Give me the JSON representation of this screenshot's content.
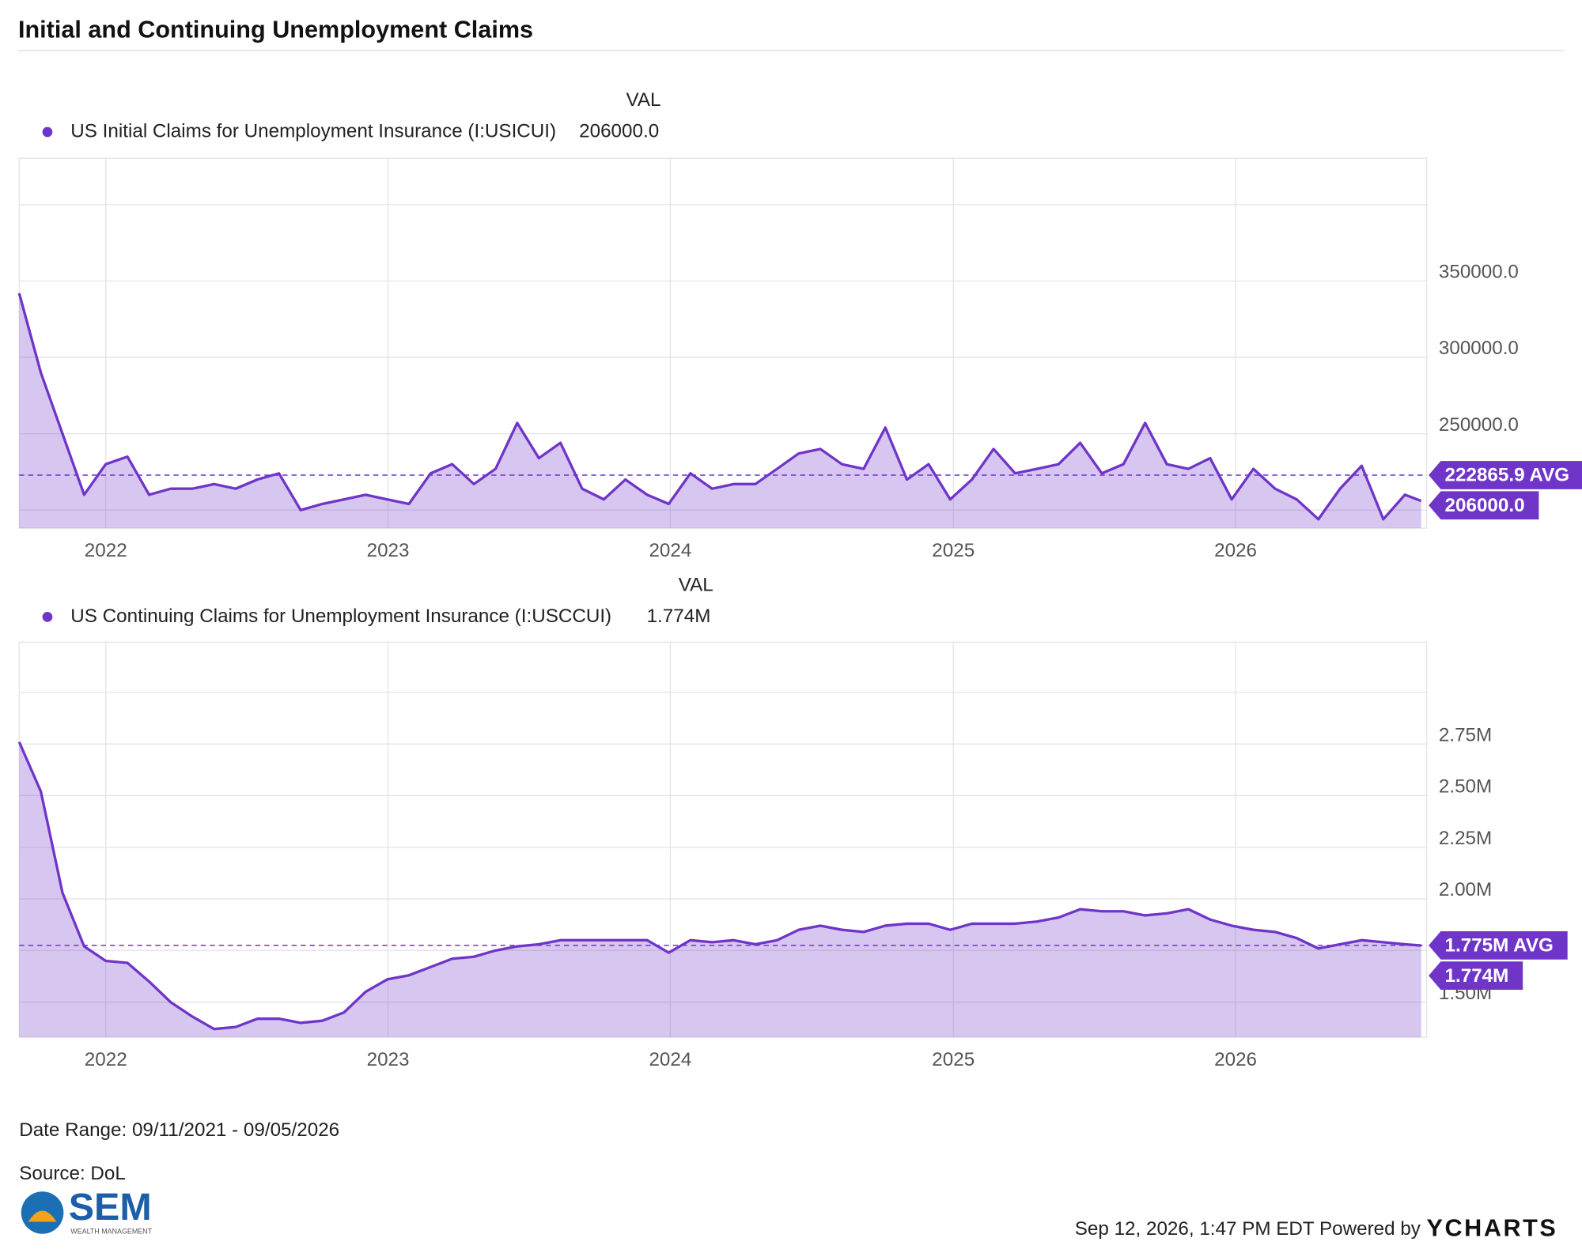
{
  "title": "Initial and Continuing Unemployment Claims",
  "chart_data": [
    {
      "type": "area",
      "legend_header": "VAL",
      "x": [
        "2021-09-11",
        "2021-10-09",
        "2021-11-06",
        "2021-12-04",
        "2022-01-01",
        "2022-01-29",
        "2022-02-26",
        "2022-03-26",
        "2022-04-23",
        "2022-05-21",
        "2022-06-18",
        "2022-07-16",
        "2022-08-13",
        "2022-09-10",
        "2022-10-08",
        "2022-11-05",
        "2022-12-03",
        "2022-12-31",
        "2023-01-28",
        "2023-02-25",
        "2023-03-25",
        "2023-04-22",
        "2023-05-20",
        "2023-06-17",
        "2023-07-15",
        "2023-08-12",
        "2023-09-09",
        "2023-10-07",
        "2023-11-04",
        "2023-12-02",
        "2023-12-30",
        "2024-01-27",
        "2024-02-24",
        "2024-03-23",
        "2024-04-20",
        "2024-05-18",
        "2024-06-15",
        "2024-07-13",
        "2024-08-10",
        "2024-09-07",
        "2024-10-05",
        "2024-11-02",
        "2024-11-30",
        "2024-12-28",
        "2025-01-25",
        "2025-02-22",
        "2025-03-22",
        "2025-04-19",
        "2025-05-17",
        "2025-06-14",
        "2025-07-12",
        "2025-08-09",
        "2025-09-06",
        "2025-10-04",
        "2025-11-01",
        "2025-11-29",
        "2025-12-27",
        "2026-01-24",
        "2026-02-21",
        "2026-03-21",
        "2026-04-18",
        "2026-05-16",
        "2026-06-13",
        "2026-07-11",
        "2026-08-08",
        "2026-08-29"
      ],
      "series": [
        {
          "name": "US Initial Claims for Unemployment Insurance (I:USICUI)",
          "color": "#6f35c9",
          "values": [
            342000,
            290000,
            250000,
            210000,
            230000,
            235000,
            210000,
            214000,
            214000,
            217000,
            214000,
            220000,
            224000,
            200000,
            204000,
            207000,
            210000,
            207000,
            204000,
            224000,
            230000,
            217000,
            227000,
            257000,
            234000,
            244000,
            214000,
            207000,
            220000,
            210000,
            204000,
            224000,
            214000,
            217000,
            217000,
            227000,
            237000,
            240000,
            230000,
            227000,
            254000,
            220000,
            230000,
            207000,
            220000,
            240000,
            224000,
            227000,
            230000,
            244000,
            224000,
            230000,
            257000,
            230000,
            227000,
            234000,
            207000,
            227000,
            214000,
            207000,
            194000,
            214000,
            229000,
            194000,
            210000,
            206000
          ]
        }
      ],
      "latest": {
        "value": 206000,
        "label": "206000.0"
      },
      "avg": {
        "value": 222865.9,
        "label": "222865.9 AVG"
      },
      "xlim": [
        "2021-09-11",
        "2026-09-05"
      ],
      "xticks": [
        {
          "value": "2022-01-01",
          "label": "2022"
        },
        {
          "value": "2023-01-01",
          "label": "2023"
        },
        {
          "value": "2024-01-01",
          "label": "2024"
        },
        {
          "value": "2025-01-01",
          "label": "2025"
        },
        {
          "value": "2026-01-01",
          "label": "2026"
        }
      ],
      "ylim": [
        188100,
        430400
      ],
      "yticks": [
        {
          "value": 250000,
          "label": "250000.0"
        },
        {
          "value": 300000,
          "label": "300000.0"
        },
        {
          "value": 350000,
          "label": "350000.0"
        }
      ],
      "grid_lines": [
        200000,
        250000,
        300000,
        350000,
        400000
      ]
    },
    {
      "type": "area",
      "legend_header": "VAL",
      "x": [
        "2021-09-11",
        "2021-10-09",
        "2021-11-06",
        "2021-12-04",
        "2022-01-01",
        "2022-01-29",
        "2022-02-26",
        "2022-03-26",
        "2022-04-23",
        "2022-05-21",
        "2022-06-18",
        "2022-07-16",
        "2022-08-13",
        "2022-09-10",
        "2022-10-08",
        "2022-11-05",
        "2022-12-03",
        "2022-12-31",
        "2023-01-28",
        "2023-02-25",
        "2023-03-25",
        "2023-04-22",
        "2023-05-20",
        "2023-06-17",
        "2023-07-15",
        "2023-08-12",
        "2023-09-09",
        "2023-10-07",
        "2023-11-04",
        "2023-12-02",
        "2023-12-30",
        "2024-01-27",
        "2024-02-24",
        "2024-03-23",
        "2024-04-20",
        "2024-05-18",
        "2024-06-15",
        "2024-07-13",
        "2024-08-10",
        "2024-09-07",
        "2024-10-05",
        "2024-11-02",
        "2024-11-30",
        "2024-12-28",
        "2025-01-25",
        "2025-02-22",
        "2025-03-22",
        "2025-04-19",
        "2025-05-17",
        "2025-06-14",
        "2025-07-12",
        "2025-08-09",
        "2025-09-06",
        "2025-10-04",
        "2025-11-01",
        "2025-11-29",
        "2025-12-27",
        "2026-01-24",
        "2026-02-21",
        "2026-03-21",
        "2026-04-18",
        "2026-05-16",
        "2026-06-13",
        "2026-07-11",
        "2026-08-08",
        "2026-08-29"
      ],
      "series": [
        {
          "name": "US Continuing Claims for Unemployment Insurance (I:USCCUI)",
          "color": "#6f35c9",
          "values": [
            2760000,
            2520000,
            2030000,
            1770000,
            1700000,
            1690000,
            1600000,
            1500000,
            1430000,
            1370000,
            1380000,
            1420000,
            1420000,
            1400000,
            1410000,
            1450000,
            1550000,
            1610000,
            1630000,
            1670000,
            1710000,
            1720000,
            1750000,
            1770000,
            1780000,
            1800000,
            1800000,
            1800000,
            1800000,
            1800000,
            1740000,
            1800000,
            1790000,
            1800000,
            1780000,
            1800000,
            1850000,
            1870000,
            1850000,
            1840000,
            1870000,
            1880000,
            1880000,
            1850000,
            1880000,
            1880000,
            1880000,
            1890000,
            1910000,
            1950000,
            1940000,
            1940000,
            1920000,
            1930000,
            1950000,
            1900000,
            1870000,
            1850000,
            1840000,
            1810000,
            1760000,
            1780000,
            1800000,
            1790000,
            1780000,
            1774000
          ]
        }
      ],
      "latest": {
        "value": 1774000,
        "label": "1.774M"
      },
      "avg": {
        "value": 1775000,
        "label": "1.775M AVG"
      },
      "xlim": [
        "2021-09-11",
        "2026-09-05"
      ],
      "xticks": [
        {
          "value": "2022-01-01",
          "label": "2022"
        },
        {
          "value": "2023-01-01",
          "label": "2023"
        },
        {
          "value": "2024-01-01",
          "label": "2024"
        },
        {
          "value": "2025-01-01",
          "label": "2025"
        },
        {
          "value": "2026-01-01",
          "label": "2026"
        }
      ],
      "ylim": [
        1330000,
        3243000
      ],
      "yticks": [
        {
          "value": 1500000,
          "label": "1.50M"
        },
        {
          "value": 2000000,
          "label": "2.00M"
        },
        {
          "value": 2250000,
          "label": "2.25M"
        },
        {
          "value": 2500000,
          "label": "2.50M"
        },
        {
          "value": 2750000,
          "label": "2.75M"
        }
      ],
      "grid_lines": [
        1500000,
        1750000,
        2000000,
        2250000,
        2500000,
        2750000,
        3000000
      ]
    }
  ],
  "date_range": "Date Range: 09/11/2021 - 09/05/2026",
  "source": "Source: DoL",
  "logo": {
    "name": "SEM",
    "tagline": "WEALTH MANAGEMENT"
  },
  "timestamp": "Sep 12, 2026, 1:47 PM EDT Powered by",
  "brand": "YCHARTS"
}
